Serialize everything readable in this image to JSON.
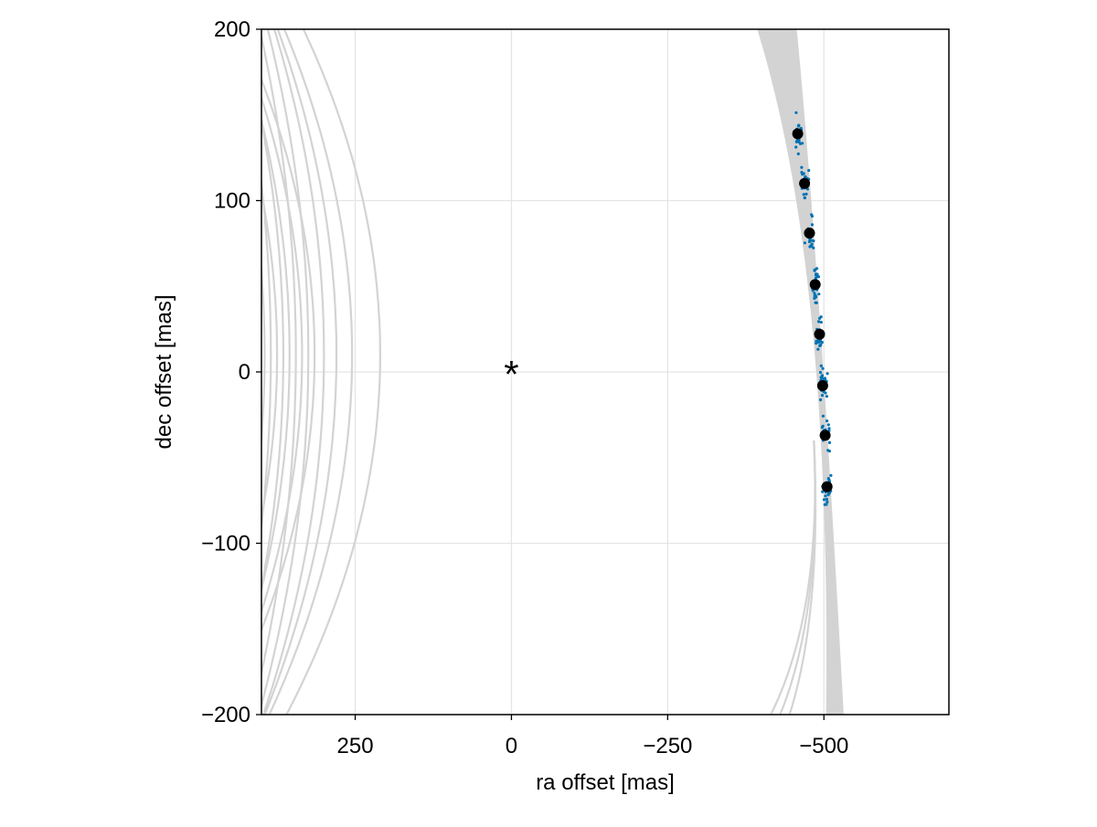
{
  "chart_data": {
    "type": "scatter",
    "title": "",
    "xlabel": "ra offset [mas]",
    "ylabel": "dec offset [mas]",
    "x_axis_reversed": true,
    "xlim": [
      400,
      -700
    ],
    "ylim": [
      -200,
      200
    ],
    "xticks": [
      250,
      0,
      -250,
      -500
    ],
    "yticks": [
      200,
      100,
      0,
      -100,
      -200
    ],
    "xtick_labels": [
      "250",
      "0",
      "−250",
      "−500"
    ],
    "ytick_labels": [
      "200",
      "100",
      "0",
      "−100",
      "−200"
    ],
    "grid": true,
    "legend": "none",
    "colors": {
      "orbit_lines": "#d3d3d3",
      "posterior_points": "#0072b2",
      "epoch_points": "#000000",
      "grid": "#e5e5e5",
      "axes": "#000000"
    },
    "star": {
      "symbol": "*",
      "x": 0,
      "y": 0
    },
    "epoch_points": [
      {
        "x": -458,
        "y": 139
      },
      {
        "x": -469,
        "y": 110
      },
      {
        "x": -477,
        "y": 81
      },
      {
        "x": -486,
        "y": 51
      },
      {
        "x": -493,
        "y": 22
      },
      {
        "x": -498,
        "y": -8
      },
      {
        "x": -502,
        "y": -37
      },
      {
        "x": -505,
        "y": -67
      }
    ],
    "orbit_band": {
      "description_of_data": "posterior orbit tracks near the observed arc",
      "top": {
        "x_min": -395,
        "x_max": -455,
        "y": 200
      },
      "pinch": {
        "x_min": -482,
        "x_max": -492,
        "y": 60
      },
      "bottom": {
        "x_min": -505,
        "x_max": -530,
        "y": -200
      },
      "stray_tracks_bottom_x": [
        -415,
        -430,
        -445
      ]
    },
    "wide_orbit_vertex_x": [
      210,
      255,
      280,
      300,
      315,
      325,
      335,
      345,
      355,
      365,
      375,
      385,
      395
    ],
    "wide_orbit_curvature": [
      0.0034,
      0.003,
      0.0026,
      0.0022,
      0.0033,
      0.0018,
      0.0029,
      0.0016,
      0.0024,
      0.0019,
      0.0028,
      0.0015,
      0.0021
    ],
    "cluster_seed": 7
  }
}
